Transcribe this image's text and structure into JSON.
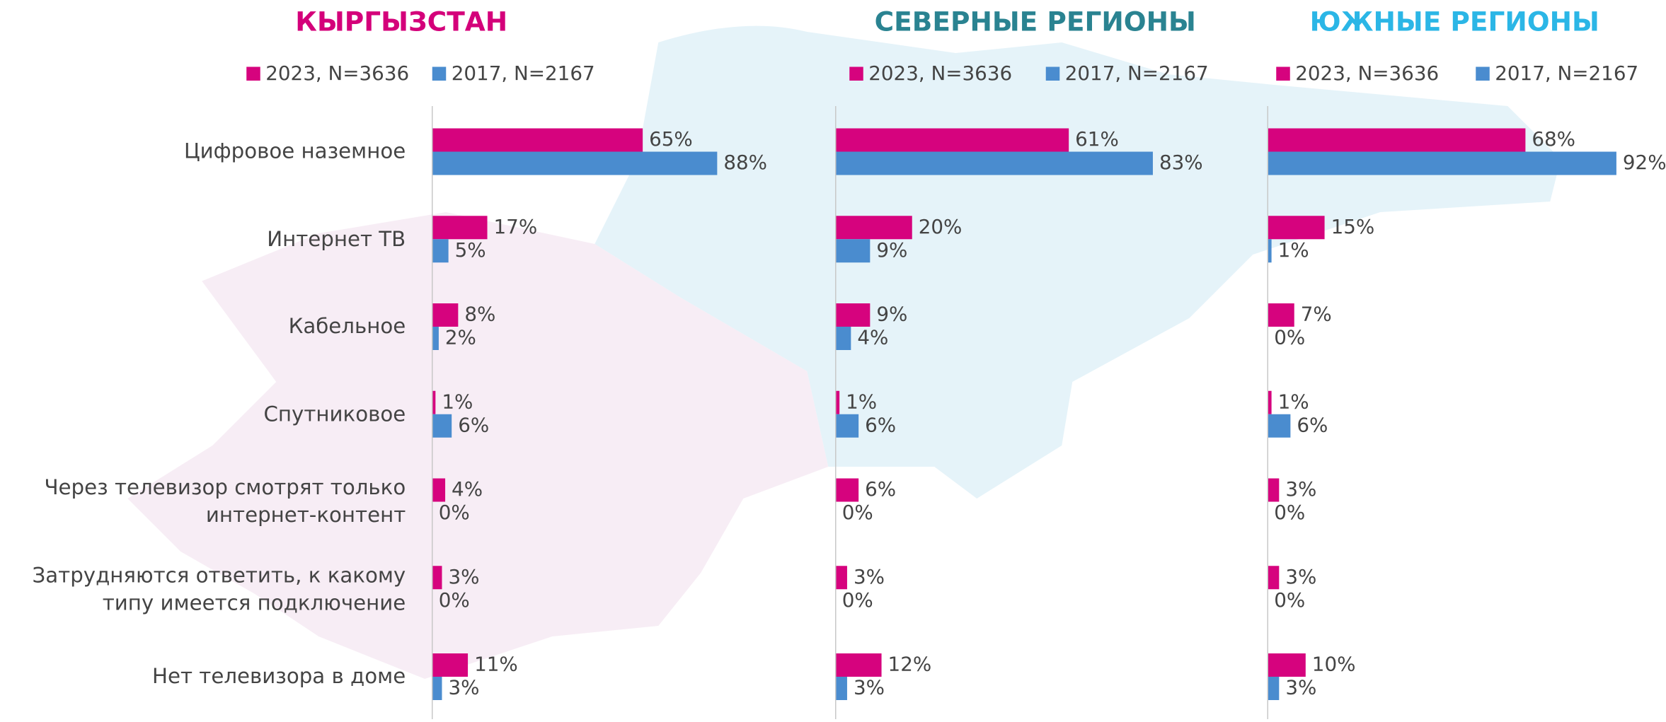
{
  "chart_data": [
    {
      "type": "bar",
      "title": "КЫРГЫЗСТАН",
      "title_color": "#d4007a",
      "categories": [
        "Цифровое наземное",
        "Интернет ТВ",
        "Кабельное",
        "Спутниковое",
        "Через телевизор смотрят только\nинтернет-контент",
        "Затрудняются ответить, к какому\nтипу имеется подключение",
        "Нет телевизора в доме"
      ],
      "xlim": [
        0,
        100
      ],
      "series": [
        {
          "name": "2023, N=3636",
          "color": "#d6037e",
          "values": [
            65,
            17,
            8,
            1,
            4,
            3,
            11
          ],
          "value_labels": [
            "65%",
            "17%",
            "8%",
            "1%",
            "4%",
            "3%",
            "11%"
          ]
        },
        {
          "name": "2017, N=2167",
          "color": "#4a8ccf",
          "values": [
            88,
            5,
            2,
            6,
            0,
            0,
            3
          ],
          "value_labels": [
            "88%",
            "5%",
            "2%",
            "6%",
            "0%",
            "0%",
            "3%"
          ]
        }
      ]
    },
    {
      "type": "bar",
      "title": "СЕВЕРНЫЕ РЕГИОНЫ",
      "title_color": "#2a8391",
      "xlim": [
        0,
        100
      ],
      "series": [
        {
          "name": "2023, N=3636",
          "color": "#d6037e",
          "values": [
            61,
            20,
            9,
            1,
            6,
            3,
            12
          ],
          "value_labels": [
            "61%",
            "20%",
            "9%",
            "1%",
            "6%",
            "3%",
            "12%"
          ]
        },
        {
          "name": "2017, N=2167",
          "color": "#4a8ccf",
          "values": [
            83,
            9,
            4,
            6,
            0,
            0,
            3
          ],
          "value_labels": [
            "83%",
            "9%",
            "4%",
            "6%",
            "0%",
            "0%",
            "3%"
          ]
        }
      ]
    },
    {
      "type": "bar",
      "title": "ЮЖНЫЕ РЕГИОНЫ",
      "title_color": "#2bb6e6",
      "xlim": [
        0,
        100
      ],
      "series": [
        {
          "name": "2023, N=3636",
          "color": "#d6037e",
          "values": [
            68,
            15,
            7,
            1,
            3,
            3,
            10
          ],
          "value_labels": [
            "68%",
            "15%",
            "7%",
            "1%",
            "3%",
            "3%",
            "10%"
          ]
        },
        {
          "name": "2017, N=2167",
          "color": "#4a8ccf",
          "values": [
            92,
            1,
            0,
            6,
            0,
            0,
            3
          ],
          "value_labels": [
            "92%",
            "1%",
            "0%",
            "6%",
            "0%",
            "0%",
            "3%"
          ]
        }
      ]
    }
  ]
}
